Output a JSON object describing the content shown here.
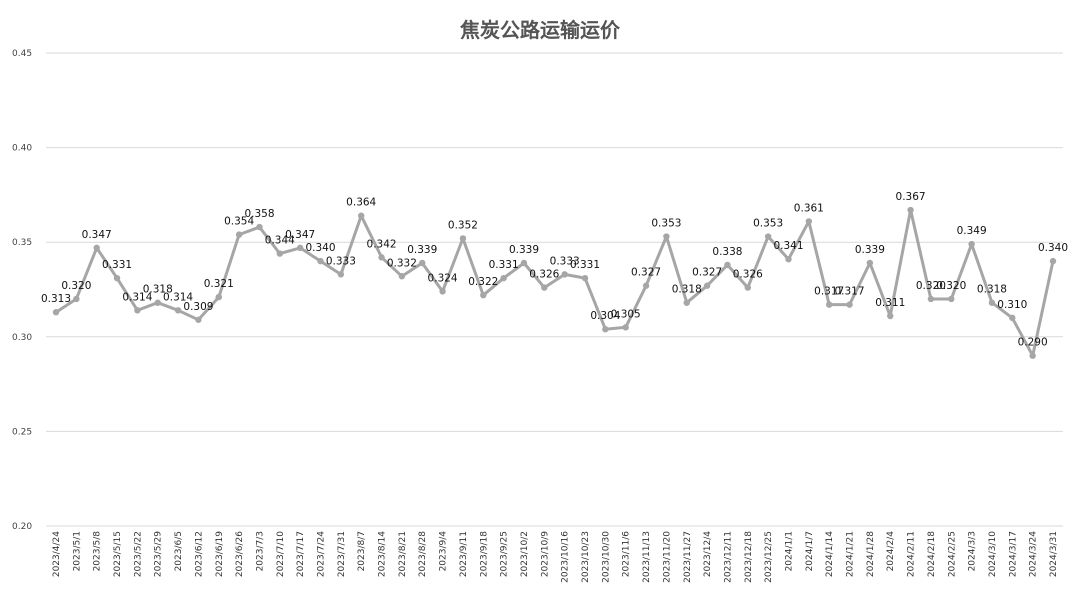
{
  "chart_data": {
    "type": "line",
    "title": "焦炭公路运输运价",
    "xlabel": "",
    "ylabel": "",
    "ylim": [
      0.2,
      0.45
    ],
    "yticks": [
      "0.20",
      "0.25",
      "0.30",
      "0.35",
      "0.40",
      "0.45"
    ],
    "grid": true,
    "legend": "none",
    "line_color": "#a6a6a6",
    "categories": [
      "2023/4/24",
      "2023/5/1",
      "2023/5/8",
      "2023/5/15",
      "2023/5/22",
      "2023/5/29",
      "2023/6/5",
      "2023/6/12",
      "2023/6/19",
      "2023/6/26",
      "2023/7/3",
      "2023/7/10",
      "2023/7/17",
      "2023/7/24",
      "2023/7/31",
      "2023/8/7",
      "2023/8/14",
      "2023/8/21",
      "2023/8/28",
      "2023/9/4",
      "2023/9/11",
      "2023/9/18",
      "2023/9/25",
      "2023/10/2",
      "2023/10/9",
      "2023/10/16",
      "2023/10/23",
      "2023/10/30",
      "2023/11/6",
      "2023/11/13",
      "2023/11/20",
      "2023/11/27",
      "2023/12/4",
      "2023/12/11",
      "2023/12/18",
      "2023/12/25",
      "2024/1/1",
      "2024/1/7",
      "2024/1/14",
      "2024/1/21",
      "2024/1/28",
      "2024/2/4",
      "2024/2/11",
      "2024/2/18",
      "2024/2/25",
      "2024/3/3",
      "2024/3/10",
      "2024/3/17",
      "2024/3/24",
      "2024/3/31"
    ],
    "values": [
      0.313,
      0.32,
      0.347,
      0.331,
      0.314,
      0.318,
      0.314,
      0.309,
      0.321,
      0.354,
      0.358,
      0.344,
      0.347,
      0.34,
      0.333,
      0.364,
      0.342,
      0.332,
      0.339,
      0.324,
      0.352,
      0.322,
      0.331,
      0.339,
      0.326,
      0.333,
      0.331,
      0.304,
      0.305,
      0.327,
      0.353,
      0.318,
      0.327,
      0.338,
      0.326,
      0.353,
      0.341,
      0.361,
      0.317,
      0.317,
      0.339,
      0.311,
      0.367,
      0.32,
      0.32,
      0.349,
      0.318,
      0.31,
      0.29,
      0.34
    ],
    "labels": [
      "0.313",
      "0.320",
      "0.347",
      "0.331",
      "0.314",
      "0.318",
      "0.314",
      "0.309",
      "0.321",
      "0.354",
      "0.358",
      "0.344",
      "0.347",
      "0.340",
      "0.333",
      "0.364",
      "0.342",
      "0.332",
      "0.339",
      "0.324",
      "0.352",
      "0.322",
      "0.331",
      "0.339",
      "0.326",
      "0.333",
      "0.331",
      "0.304",
      "0.305",
      "0.327",
      "0.353",
      "0.318",
      "0.327",
      "0.338",
      "0.326",
      "0.353",
      "0.341",
      "0.361",
      "0.317",
      "0.317",
      "0.339",
      "0.311",
      "0.367",
      "0.320",
      "0.320",
      "0.349",
      "0.318",
      "0.310",
      "0.290",
      "0.340"
    ]
  }
}
